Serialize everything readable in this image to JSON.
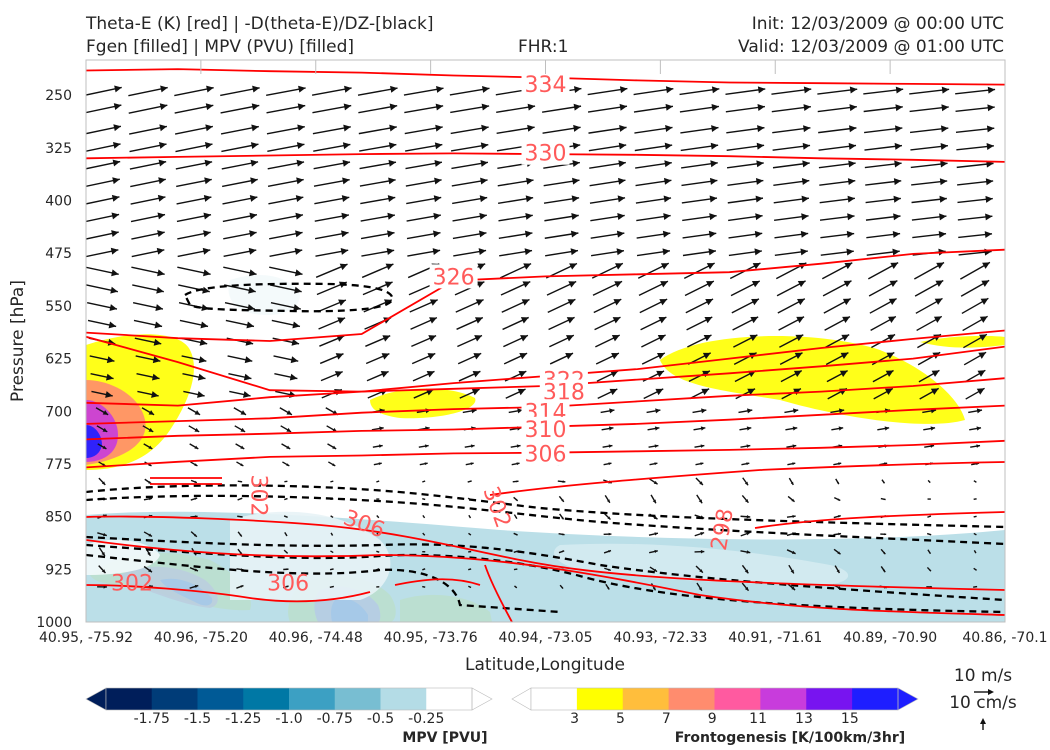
{
  "header": {
    "title_line1": "Theta-E (K) [red] | -D(theta-E)/DZ-[black]",
    "title_line2": "Fgen [filled] | MPV (PVU) [filled]",
    "fhr": "FHR:1",
    "init": "Init: 12/03/2009 @ 00:00 UTC",
    "valid": "Valid: 12/03/2009 @ 01:00 UTC"
  },
  "colors": {
    "theta_e": "#ff0000",
    "ddz": "#000000",
    "contour_label": "#ff5a5a",
    "fgen": [
      "#ffff00",
      "#ffbe3c",
      "#ff8c6e",
      "#ff5aa0",
      "#c83cdc",
      "#7814f0",
      "#1e1eff"
    ],
    "mpv": [
      "#001e5a",
      "#003c78",
      "#005a96",
      "#0078a5",
      "#3ca0c3",
      "#78bed2",
      "#b4dce6"
    ]
  },
  "chart_data": {
    "type": "cross-section",
    "xlabel": "Latitude,Longitude",
    "ylabel": "Pressure [hPa]",
    "x_ticks": [
      "40.95, -75.92",
      "40.96, -75.20",
      "40.96, -74.48",
      "40.95, -73.76",
      "40.94, -73.05",
      "40.93, -72.33",
      "40.91, -71.61",
      "40.89, -70.90",
      "40.86, -70.1"
    ],
    "y_ticks": [
      250,
      325,
      400,
      475,
      550,
      625,
      700,
      775,
      850,
      925,
      1000
    ],
    "ylim": [
      200,
      1000
    ],
    "y_inverted": true,
    "theta_e_contours": [
      {
        "level": "334",
        "y": [
          215,
          213,
          216,
          218,
          222,
          225,
          229,
          232,
          233,
          234,
          235
        ],
        "label": {
          "x": 0.5,
          "p": 234
        }
      },
      {
        "level": "330",
        "y": [
          340,
          338,
          336,
          334,
          333,
          334,
          335,
          337,
          340,
          342,
          345
        ],
        "label": {
          "x": 0.5,
          "p": 332
        }
      },
      {
        "level": "326",
        "y": [
          588,
          596,
          600,
          590,
          514,
          508,
          505,
          502,
          490,
          476,
          470
        ],
        "label": {
          "x": 0.4,
          "p": 508
        }
      },
      {
        "level": "322",
        "y": [
          594,
          630,
          670,
          672,
          660,
          650,
          640,
          625,
          610,
          597,
          585
        ],
        "label": {
          "x": 0.52,
          "p": 655
        }
      },
      {
        "level": "318",
        "y": [
          688,
          692,
          680,
          672,
          668,
          664,
          655,
          646,
          636,
          625,
          608
        ],
        "label": {
          "x": 0.52,
          "p": 672
        }
      },
      {
        "level": "314",
        "y": [
          718,
          714,
          710,
          702,
          697,
          694,
          686,
          678,
          672,
          664,
          653
        ],
        "label": {
          "x": 0.5,
          "p": 700
        }
      },
      {
        "level": "310",
        "y": [
          740,
          735,
          732,
          728,
          726,
          722,
          718,
          712,
          705,
          698,
          692
        ],
        "label": {
          "x": 0.5,
          "p": 725
        }
      },
      {
        "level": "306",
        "y": [
          780,
          772,
          765,
          763,
          760,
          759,
          757,
          755,
          752,
          748,
          742
        ],
        "label": {
          "x": 0.5,
          "p": 760
        }
      }
    ],
    "extra_labels": [
      {
        "text": "302",
        "x": 0.18,
        "p": 820,
        "rot": 90
      },
      {
        "text": "302",
        "x": 0.44,
        "p": 840,
        "rot": 70
      },
      {
        "text": "306",
        "x": 0.3,
        "p": 870,
        "rot": 20
      },
      {
        "text": "298",
        "x": 0.7,
        "p": 870,
        "rot": -80
      },
      {
        "text": "306",
        "x": 0.22,
        "p": 955,
        "rot": 0
      },
      {
        "text": "302",
        "x": 0.05,
        "p": 955,
        "rot": 0
      }
    ],
    "mpv_colorbar": {
      "ticks": [
        "-1.75",
        "-1.5",
        "-1.25",
        "-1.0",
        "-0.75",
        "-0.5",
        "-0.25"
      ],
      "label": "MPV [PVU]"
    },
    "fgen_colorbar": {
      "ticks": [
        "3",
        "5",
        "7",
        "9",
        "11",
        "13",
        "15"
      ],
      "label": "Frontogenesis [K/100km/3hr]"
    },
    "wind_key": {
      "u_label": "10 m/s",
      "w_label": "10 cm/s"
    }
  }
}
